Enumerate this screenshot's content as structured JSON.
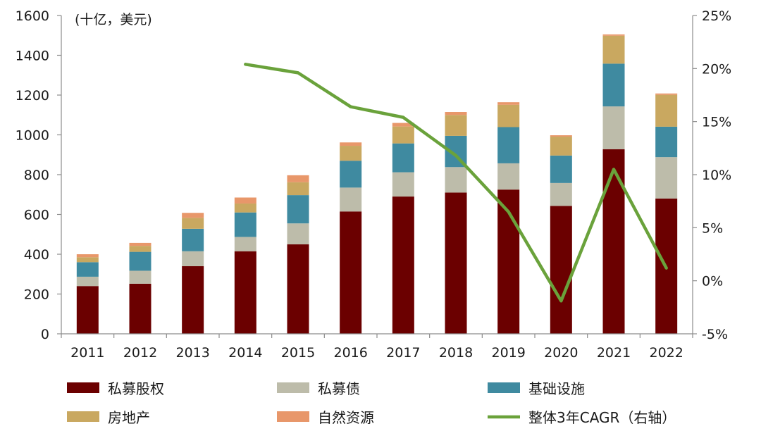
{
  "chart_data": {
    "type": "bar",
    "stacked": true,
    "unit_label": "(十亿，美元)",
    "categories": [
      "2011",
      "2012",
      "2013",
      "2014",
      "2015",
      "2016",
      "2017",
      "2018",
      "2019",
      "2020",
      "2021",
      "2022"
    ],
    "series": [
      {
        "name": "私募股权",
        "color": "#6b0000",
        "values": [
          240,
          252,
          340,
          415,
          450,
          615,
          690,
          710,
          725,
          643,
          928,
          680
        ]
      },
      {
        "name": "私募债",
        "color": "#bdbcaa",
        "values": [
          47,
          65,
          75,
          72,
          105,
          120,
          122,
          128,
          132,
          115,
          215,
          208
        ]
      },
      {
        "name": "基础设施",
        "color": "#3f8aa0",
        "values": [
          73,
          95,
          113,
          123,
          142,
          135,
          145,
          157,
          182,
          138,
          215,
          153
        ]
      },
      {
        "name": "房地产",
        "color": "#c9a860",
        "values": [
          25,
          30,
          55,
          45,
          65,
          75,
          85,
          105,
          112,
          95,
          140,
          160
        ]
      },
      {
        "name": "自然资源",
        "color": "#e8976a",
        "values": [
          15,
          15,
          25,
          30,
          35,
          17,
          18,
          15,
          13,
          7,
          7,
          7
        ]
      }
    ],
    "line_series": {
      "name": "整体3年CAGR（右轴）",
      "color": "#6aa23b",
      "axis": "right",
      "x": [
        "2014",
        "2015",
        "2016",
        "2017",
        "2018",
        "2019",
        "2020",
        "2021",
        "2022"
      ],
      "values": [
        20.4,
        19.6,
        16.4,
        15.4,
        11.8,
        6.5,
        -1.9,
        10.5,
        1.2
      ]
    },
    "ylim": [
      0,
      1600
    ],
    "yticks": [
      0,
      200,
      400,
      600,
      800,
      1000,
      1200,
      1400,
      1600
    ],
    "y2lim": [
      -5,
      25
    ],
    "y2ticks": [
      -5,
      0,
      5,
      10,
      15,
      20,
      25
    ],
    "y2tick_suffix": "%",
    "legend_position": "bottom"
  }
}
